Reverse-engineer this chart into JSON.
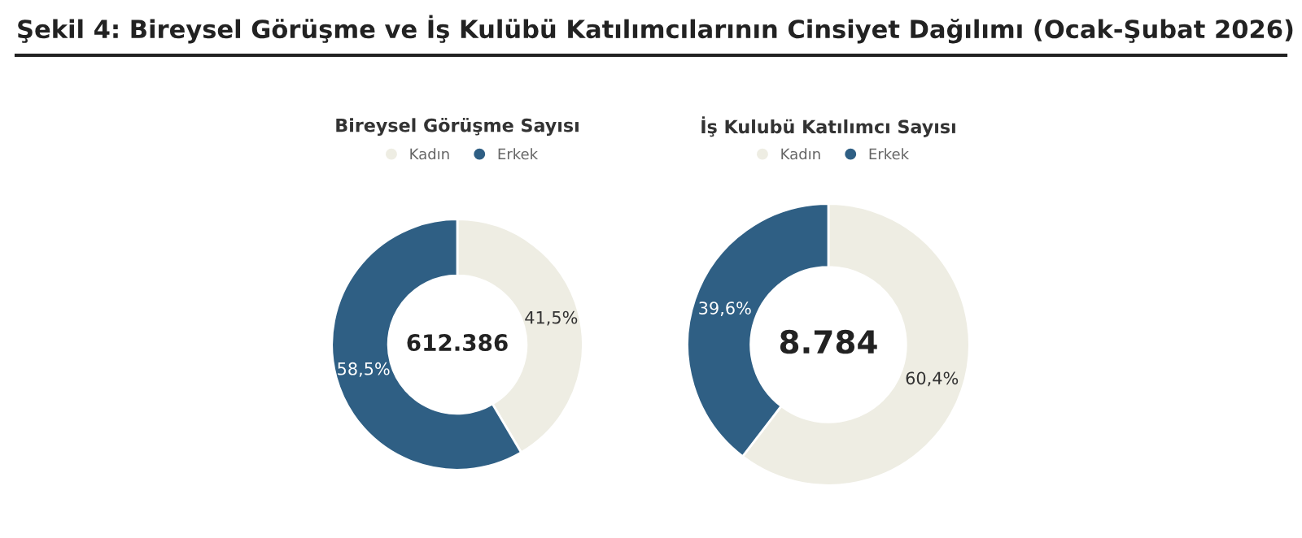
{
  "chart_data": [
    {
      "type": "donut",
      "title": "Şekil 4: Bireysel Görüşme ve İş Kulübü Katılımcılarının Cinsiyet Dağılımı (Ocak-Şubat 2026)",
      "subtitle": "Bireysel Görüşme Sayısı",
      "categories": [
        "Kadın",
        "Erkek"
      ],
      "values": [
        41.5,
        58.5
      ],
      "value_labels": [
        "41,5%",
        "58,5%"
      ],
      "colors": [
        "#eeede3",
        "#2f5f84"
      ],
      "annotations": [
        "612.386"
      ],
      "legend": "top"
    },
    {
      "type": "donut",
      "subtitle": "İş Kulubü Katılımcı Sayısı",
      "categories": [
        "Kadın",
        "Erkek"
      ],
      "values": [
        60.4,
        39.6
      ],
      "value_labels": [
        "60,4%",
        "39,6%"
      ],
      "colors": [
        "#eeede3",
        "#2f5f84"
      ],
      "annotations": [
        "8.784"
      ],
      "legend": "top"
    }
  ]
}
